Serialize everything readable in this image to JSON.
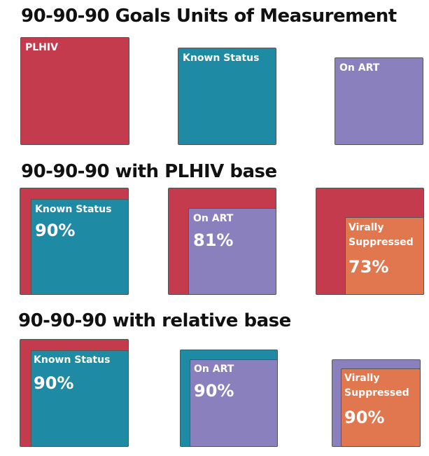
{
  "colors": {
    "plhiv": "#c53b4e",
    "known_status": "#1f8aa3",
    "on_art": "#8a80bd",
    "virally_suppressed": "#e1774f"
  },
  "sections": [
    {
      "title": "90-90-90 Goals Units of Measurement",
      "labels": [
        "PLHIV",
        "Known Status",
        "On ART"
      ]
    },
    {
      "title": "90-90-90 with PLHIV base",
      "panels": [
        {
          "label": "Known Status",
          "value": "90%",
          "fraction": 0.9
        },
        {
          "label": "On ART",
          "value": "81%",
          "fraction": 0.81
        },
        {
          "label": "Virally Suppressed",
          "label_lines": [
            "Virally",
            "Suppressed"
          ],
          "value": "73%",
          "fraction": 0.73
        }
      ]
    },
    {
      "title": "90-90-90 with relative base",
      "panels": [
        {
          "label": "Known Status",
          "value": "90%",
          "fraction": 0.9
        },
        {
          "label": "On ART",
          "value": "90%",
          "fraction": 0.9
        },
        {
          "label": "Virally Suppressed",
          "label_lines": [
            "Virally",
            "Suppressed"
          ],
          "value": "90%",
          "fraction": 0.9
        }
      ]
    }
  ]
}
